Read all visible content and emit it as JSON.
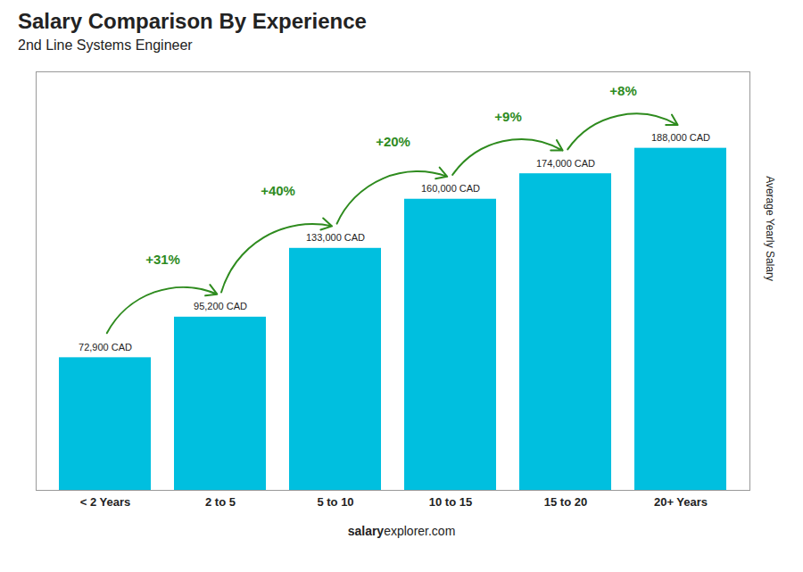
{
  "chart_data": {
    "type": "bar",
    "title": "Salary Comparison By Experience",
    "subtitle": "2nd Line Systems Engineer",
    "categories": [
      "< 2 Years",
      "2 to 5",
      "5 to 10",
      "10 to 15",
      "15 to 20",
      "20+ Years"
    ],
    "values": [
      72900,
      95200,
      133000,
      160000,
      174000,
      188000
    ],
    "value_labels": [
      "72,900 CAD",
      "95,200 CAD",
      "133,000 CAD",
      "160,000 CAD",
      "174,000 CAD",
      "188,000 CAD"
    ],
    "data_labels": true,
    "color": "#00bfdf",
    "ylabel": "Average Yearly Salary",
    "ylim": [
      0,
      230000
    ],
    "tick_labels": "x",
    "annotations": [
      "+31%",
      "+40%",
      "+20%",
      "+9%",
      "+8%"
    ],
    "footer": [
      "salary",
      "explorer.com"
    ]
  }
}
